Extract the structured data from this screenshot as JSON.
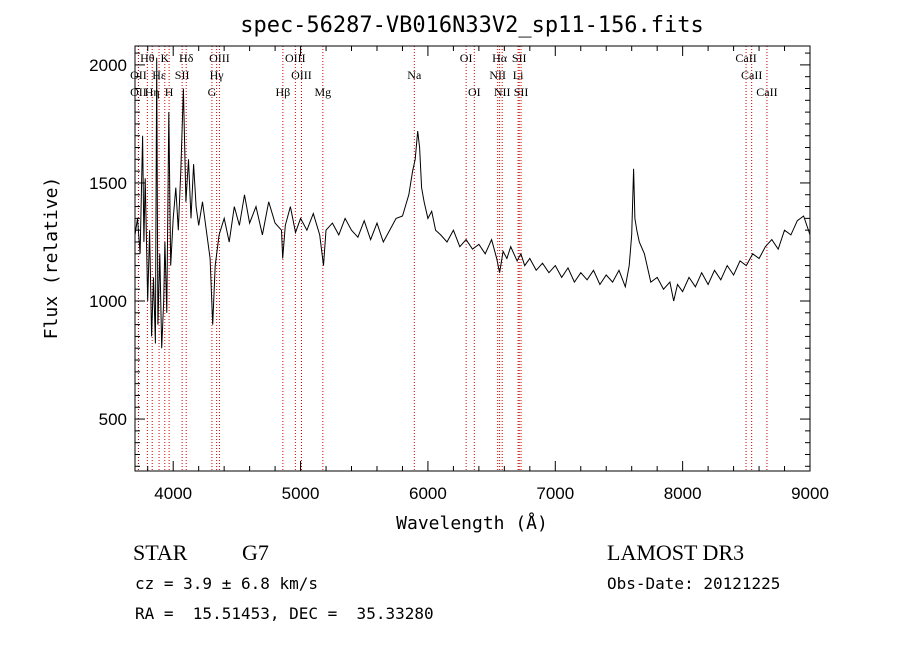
{
  "chart_data": {
    "type": "line",
    "title": "spec-56287-VB016N33V2_sp11-156.fits",
    "xlabel": "Wavelength (Å)",
    "ylabel": "Flux (relative)",
    "xlim": [
      3700,
      9000
    ],
    "ylim": [
      280,
      2080
    ],
    "xticks": [
      4000,
      5000,
      6000,
      7000,
      8000,
      9000
    ],
    "yticks": [
      500,
      1000,
      1500,
      2000
    ],
    "grid": false,
    "line_color": "#000000",
    "marker_color": "#cc0000",
    "spectrum_points": [
      [
        3700,
        1280
      ],
      [
        3720,
        1350
      ],
      [
        3740,
        1200
      ],
      [
        3760,
        1700
      ],
      [
        3770,
        1250
      ],
      [
        3780,
        1520
      ],
      [
        3800,
        1000
      ],
      [
        3815,
        1300
      ],
      [
        3830,
        850
      ],
      [
        3845,
        1100
      ],
      [
        3860,
        820
      ],
      [
        3870,
        2030
      ],
      [
        3880,
        900
      ],
      [
        3895,
        1200
      ],
      [
        3910,
        800
      ],
      [
        3925,
        1000
      ],
      [
        3935,
        1250
      ],
      [
        3950,
        950
      ],
      [
        3965,
        1800
      ],
      [
        3980,
        1150
      ],
      [
        4000,
        1350
      ],
      [
        4020,
        1480
      ],
      [
        4040,
        1300
      ],
      [
        4060,
        1550
      ],
      [
        4080,
        1900
      ],
      [
        4100,
        1420
      ],
      [
        4120,
        1600
      ],
      [
        4140,
        1350
      ],
      [
        4160,
        1580
      ],
      [
        4180,
        1400
      ],
      [
        4200,
        1320
      ],
      [
        4230,
        1420
      ],
      [
        4260,
        1300
      ],
      [
        4290,
        1180
      ],
      [
        4310,
        900
      ],
      [
        4330,
        1150
      ],
      [
        4360,
        1280
      ],
      [
        4400,
        1350
      ],
      [
        4440,
        1250
      ],
      [
        4480,
        1400
      ],
      [
        4520,
        1320
      ],
      [
        4560,
        1450
      ],
      [
        4600,
        1330
      ],
      [
        4650,
        1400
      ],
      [
        4700,
        1280
      ],
      [
        4750,
        1420
      ],
      [
        4800,
        1330
      ],
      [
        4850,
        1300
      ],
      [
        4860,
        1180
      ],
      [
        4880,
        1320
      ],
      [
        4920,
        1400
      ],
      [
        4960,
        1290
      ],
      [
        5000,
        1350
      ],
      [
        5050,
        1300
      ],
      [
        5100,
        1370
      ],
      [
        5150,
        1280
      ],
      [
        5180,
        1150
      ],
      [
        5200,
        1300
      ],
      [
        5250,
        1330
      ],
      [
        5300,
        1280
      ],
      [
        5350,
        1350
      ],
      [
        5400,
        1300
      ],
      [
        5450,
        1270
      ],
      [
        5500,
        1340
      ],
      [
        5550,
        1260
      ],
      [
        5600,
        1330
      ],
      [
        5650,
        1250
      ],
      [
        5700,
        1300
      ],
      [
        5750,
        1350
      ],
      [
        5800,
        1360
      ],
      [
        5850,
        1450
      ],
      [
        5880,
        1550
      ],
      [
        5900,
        1600
      ],
      [
        5920,
        1720
      ],
      [
        5935,
        1650
      ],
      [
        5950,
        1480
      ],
      [
        5970,
        1420
      ],
      [
        6000,
        1350
      ],
      [
        6030,
        1380
      ],
      [
        6060,
        1300
      ],
      [
        6100,
        1280
      ],
      [
        6150,
        1250
      ],
      [
        6200,
        1300
      ],
      [
        6250,
        1230
      ],
      [
        6300,
        1260
      ],
      [
        6350,
        1220
      ],
      [
        6400,
        1240
      ],
      [
        6450,
        1200
      ],
      [
        6500,
        1260
      ],
      [
        6540,
        1180
      ],
      [
        6563,
        1120
      ],
      [
        6590,
        1210
      ],
      [
        6620,
        1180
      ],
      [
        6650,
        1230
      ],
      [
        6700,
        1170
      ],
      [
        6730,
        1200
      ],
      [
        6760,
        1150
      ],
      [
        6800,
        1180
      ],
      [
        6850,
        1130
      ],
      [
        6900,
        1160
      ],
      [
        6950,
        1120
      ],
      [
        7000,
        1150
      ],
      [
        7050,
        1100
      ],
      [
        7100,
        1140
      ],
      [
        7150,
        1080
      ],
      [
        7200,
        1120
      ],
      [
        7250,
        1090
      ],
      [
        7300,
        1130
      ],
      [
        7350,
        1070
      ],
      [
        7400,
        1110
      ],
      [
        7450,
        1080
      ],
      [
        7500,
        1130
      ],
      [
        7550,
        1060
      ],
      [
        7580,
        1150
      ],
      [
        7600,
        1280
      ],
      [
        7615,
        1560
      ],
      [
        7625,
        1350
      ],
      [
        7640,
        1300
      ],
      [
        7660,
        1250
      ],
      [
        7700,
        1200
      ],
      [
        7750,
        1080
      ],
      [
        7800,
        1100
      ],
      [
        7850,
        1050
      ],
      [
        7900,
        1080
      ],
      [
        7930,
        1000
      ],
      [
        7960,
        1070
      ],
      [
        8000,
        1040
      ],
      [
        8050,
        1100
      ],
      [
        8100,
        1060
      ],
      [
        8150,
        1120
      ],
      [
        8200,
        1070
      ],
      [
        8250,
        1130
      ],
      [
        8300,
        1090
      ],
      [
        8350,
        1150
      ],
      [
        8400,
        1110
      ],
      [
        8450,
        1170
      ],
      [
        8500,
        1150
      ],
      [
        8550,
        1200
      ],
      [
        8600,
        1180
      ],
      [
        8650,
        1230
      ],
      [
        8700,
        1260
      ],
      [
        8750,
        1220
      ],
      [
        8800,
        1300
      ],
      [
        8850,
        1280
      ],
      [
        8900,
        1340
      ],
      [
        8950,
        1360
      ],
      [
        8975,
        1320
      ],
      [
        9000,
        1280
      ]
    ],
    "line_markers": [
      {
        "label": "Hθ",
        "x": 3797,
        "row": 0
      },
      {
        "label": "OII",
        "x": 3727,
        "row": 1
      },
      {
        "label": "OII",
        "x": 3727,
        "row": 2
      },
      {
        "label": "Hη",
        "x": 3835,
        "row": 2
      },
      {
        "label": "Hε",
        "x": 3889,
        "row": 1
      },
      {
        "label": "K",
        "x": 3934,
        "row": 0
      },
      {
        "label": "H",
        "x": 3968,
        "row": 2
      },
      {
        "label": "SII",
        "x": 4070,
        "row": 1
      },
      {
        "label": "Hδ",
        "x": 4102,
        "row": 0
      },
      {
        "label": "OIII",
        "x": 4363,
        "row": 0
      },
      {
        "label": "Hγ",
        "x": 4341,
        "row": 1
      },
      {
        "label": "G",
        "x": 4304,
        "row": 2
      },
      {
        "label": "Hβ",
        "x": 4861,
        "row": 2
      },
      {
        "label": "OIII",
        "x": 4959,
        "row": 0
      },
      {
        "label": "OIII",
        "x": 5007,
        "row": 1
      },
      {
        "label": "Mg",
        "x": 5175,
        "row": 2
      },
      {
        "label": "Na",
        "x": 5893,
        "row": 1
      },
      {
        "label": "OI",
        "x": 6300,
        "row": 0
      },
      {
        "label": "OI",
        "x": 6364,
        "row": 2
      },
      {
        "label": "Hα",
        "x": 6563,
        "row": 0
      },
      {
        "label": "NII",
        "x": 6548,
        "row": 1
      },
      {
        "label": "NII",
        "x": 6583,
        "row": 2
      },
      {
        "label": "SII",
        "x": 6717,
        "row": 0
      },
      {
        "label": "Li",
        "x": 6708,
        "row": 1
      },
      {
        "label": "SII",
        "x": 6731,
        "row": 2
      },
      {
        "label": "CaII",
        "x": 8498,
        "row": 0
      },
      {
        "label": "CaII",
        "x": 8542,
        "row": 1
      },
      {
        "label": "CaII",
        "x": 8662,
        "row": 2
      }
    ]
  },
  "info": {
    "object_class": "STAR",
    "subclass": "G7",
    "survey": "LAMOST DR3",
    "redshift": "cz = 3.9 ± 6.8 km/s",
    "obs_date": "Obs-Date: 20121225",
    "coords": "RA =  15.51453, DEC =  35.33280"
  }
}
